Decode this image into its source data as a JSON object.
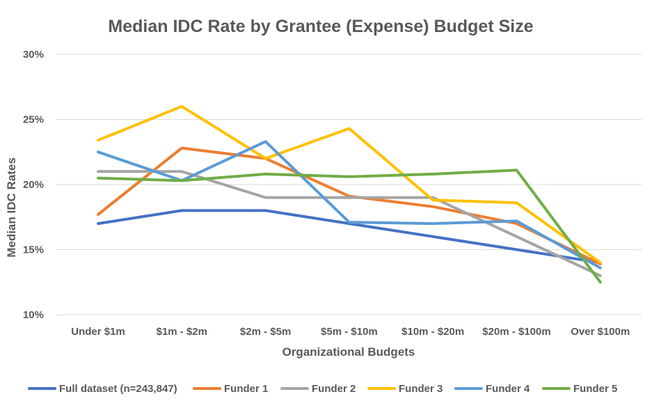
{
  "chart_data": {
    "type": "line",
    "title": "Median IDC Rate by Grantee (Expense) Budget Size",
    "xlabel": "Organizational Budgets",
    "ylabel": "Median IDC Rates",
    "ylim": [
      0.1,
      0.3
    ],
    "yticks": [
      0.1,
      0.15,
      0.2,
      0.25,
      0.3
    ],
    "ytick_labels": [
      "10%",
      "15%",
      "20%",
      "25%",
      "30%"
    ],
    "grid": true,
    "legend_position": "bottom",
    "categories": [
      "Under $1m",
      "$1m - $2m",
      "$2m - $5m",
      "$5m - $10m",
      "$10m - $20m",
      "$20m - $100m",
      "Over $100m"
    ],
    "series": [
      {
        "name": "Full dataset (n=243,847)",
        "color": "#4472c4",
        "values": [
          0.17,
          0.18,
          0.18,
          0.17,
          0.16,
          0.15,
          0.14
        ]
      },
      {
        "name": "Funder 1",
        "color": "#ed7d31",
        "values": [
          0.177,
          0.228,
          0.22,
          0.191,
          0.183,
          0.17,
          0.139
        ]
      },
      {
        "name": "Funder 2",
        "color": "#a5a5a5",
        "values": [
          0.21,
          0.21,
          0.19,
          0.19,
          0.19,
          0.16,
          0.13
        ]
      },
      {
        "name": "Funder 3",
        "color": "#ffc000",
        "values": [
          0.234,
          0.26,
          0.22,
          0.243,
          0.188,
          0.186,
          0.14
        ]
      },
      {
        "name": "Funder 4",
        "color": "#5b9bd5",
        "values": [
          0.225,
          0.203,
          0.233,
          0.171,
          0.17,
          0.172,
          0.136
        ]
      },
      {
        "name": "Funder 5",
        "color": "#70ad47",
        "values": [
          0.205,
          0.203,
          0.208,
          0.206,
          0.208,
          0.211,
          0.125
        ]
      }
    ]
  }
}
